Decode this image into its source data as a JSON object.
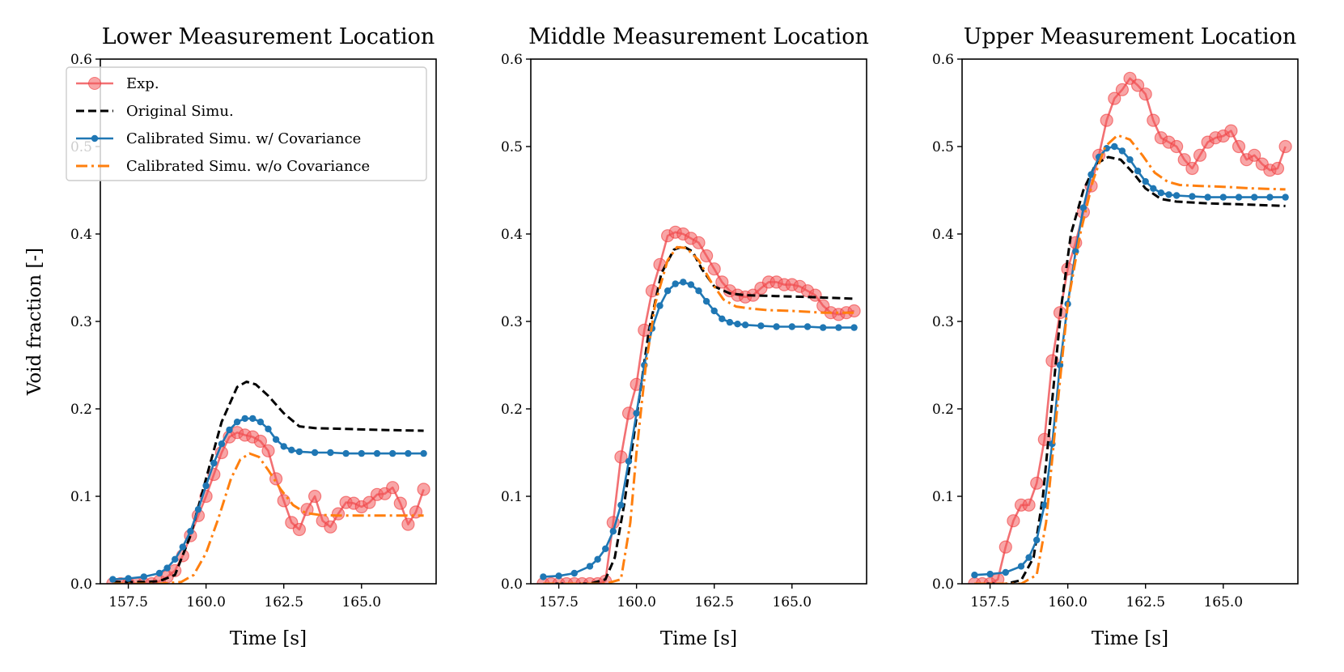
{
  "chart_data": [
    {
      "type": "line",
      "title": "Lower Measurement Location",
      "xlabel": "Time [s]",
      "ylabel": "Void fraction [-]",
      "xlim": [
        156.6,
        167.4
      ],
      "ylim": [
        0.0,
        0.6
      ],
      "xticks": [
        "157.5",
        "160.0",
        "162.5",
        "165.0"
      ],
      "yticks": [
        "0.0",
        "0.1",
        "0.2",
        "0.3",
        "0.4",
        "0.5",
        "0.6"
      ],
      "legend": "upper-left",
      "series": [
        {
          "name": "Exp.",
          "style": "exp",
          "x": [
            157.0,
            157.25,
            157.5,
            157.75,
            158.0,
            158.25,
            158.5,
            158.75,
            159.0,
            159.25,
            159.5,
            159.75,
            160.0,
            160.25,
            160.5,
            160.75,
            161.0,
            161.25,
            161.5,
            161.75,
            162.0,
            162.25,
            162.5,
            162.75,
            163.0,
            163.25,
            163.5,
            163.75,
            164.0,
            164.25,
            164.5,
            164.75,
            165.0,
            165.25,
            165.5,
            165.75,
            166.0,
            166.25,
            166.5,
            166.75,
            167.0
          ],
          "y": [
            0.0,
            0.0,
            0.0,
            0.0,
            0.0,
            0.0,
            0.003,
            0.008,
            0.015,
            0.032,
            0.055,
            0.078,
            0.1,
            0.125,
            0.15,
            0.168,
            0.173,
            0.17,
            0.168,
            0.163,
            0.152,
            0.12,
            0.095,
            0.07,
            0.062,
            0.085,
            0.1,
            0.072,
            0.065,
            0.08,
            0.093,
            0.092,
            0.088,
            0.093,
            0.102,
            0.103,
            0.11,
            0.092,
            0.068,
            0.082,
            0.108
          ]
        },
        {
          "name": "Original Simu.",
          "style": "orig",
          "x": [
            157.0,
            158.0,
            158.5,
            159.0,
            159.5,
            160.0,
            160.5,
            161.0,
            161.3,
            161.6,
            162.0,
            162.5,
            163.0,
            163.5,
            164.5,
            165.5,
            167.0
          ],
          "y": [
            0.002,
            0.002,
            0.003,
            0.01,
            0.055,
            0.12,
            0.185,
            0.225,
            0.231,
            0.228,
            0.215,
            0.195,
            0.18,
            0.178,
            0.177,
            0.176,
            0.175
          ]
        },
        {
          "name": "Calibrated Simu. w/ Covariance",
          "style": "cal",
          "x": [
            157.0,
            157.5,
            158.0,
            158.5,
            158.75,
            159.0,
            159.25,
            159.5,
            159.75,
            160.0,
            160.25,
            160.5,
            160.75,
            161.0,
            161.25,
            161.5,
            161.75,
            162.0,
            162.25,
            162.5,
            162.75,
            163.0,
            163.5,
            164.0,
            164.5,
            165.0,
            165.5,
            166.0,
            166.5,
            167.0
          ],
          "y": [
            0.005,
            0.006,
            0.008,
            0.012,
            0.018,
            0.028,
            0.042,
            0.06,
            0.085,
            0.112,
            0.138,
            0.16,
            0.176,
            0.185,
            0.189,
            0.189,
            0.185,
            0.177,
            0.165,
            0.157,
            0.153,
            0.151,
            0.15,
            0.15,
            0.149,
            0.149,
            0.149,
            0.149,
            0.149,
            0.149
          ]
        },
        {
          "name": "Calibrated Simu. w/o Covariance",
          "style": "calno",
          "x": [
            157.0,
            158.5,
            159.2,
            159.6,
            160.0,
            160.4,
            160.8,
            161.1,
            161.4,
            161.7,
            162.0,
            162.4,
            162.8,
            163.2,
            163.6,
            164.2,
            165.0,
            166.0,
            167.0
          ],
          "y": [
            0.0,
            0.0,
            0.002,
            0.01,
            0.035,
            0.075,
            0.12,
            0.142,
            0.149,
            0.145,
            0.13,
            0.108,
            0.09,
            0.081,
            0.079,
            0.078,
            0.078,
            0.078,
            0.078
          ]
        }
      ]
    },
    {
      "type": "line",
      "title": "Middle Measurement Location",
      "xlabel": "Time [s]",
      "ylabel": "",
      "xlim": [
        156.6,
        167.4
      ],
      "ylim": [
        0.0,
        0.6
      ],
      "xticks": [
        "157.5",
        "160.0",
        "162.5",
        "165.0"
      ],
      "yticks": [
        "0.0",
        "0.1",
        "0.2",
        "0.3",
        "0.4",
        "0.5",
        "0.6"
      ],
      "series": [
        {
          "name": "Exp.",
          "style": "exp",
          "x": [
            157.0,
            157.25,
            157.5,
            157.75,
            158.0,
            158.25,
            158.5,
            158.75,
            159.0,
            159.25,
            159.5,
            159.75,
            160.0,
            160.25,
            160.5,
            160.75,
            161.0,
            161.25,
            161.5,
            161.75,
            162.0,
            162.25,
            162.5,
            162.75,
            163.0,
            163.25,
            163.5,
            163.75,
            164.0,
            164.25,
            164.5,
            164.75,
            165.0,
            165.25,
            165.5,
            165.75,
            166.0,
            166.25,
            166.5,
            166.75,
            167.0
          ],
          "y": [
            0.0,
            0.0,
            0.0,
            0.0,
            0.0,
            0.0,
            0.0,
            0.0,
            0.003,
            0.07,
            0.145,
            0.195,
            0.228,
            0.29,
            0.335,
            0.365,
            0.398,
            0.402,
            0.4,
            0.395,
            0.39,
            0.375,
            0.36,
            0.345,
            0.335,
            0.33,
            0.328,
            0.33,
            0.338,
            0.345,
            0.345,
            0.342,
            0.342,
            0.34,
            0.335,
            0.33,
            0.318,
            0.31,
            0.308,
            0.31,
            0.312
          ]
        },
        {
          "name": "Original Simu.",
          "style": "orig",
          "x": [
            157.0,
            158.5,
            159.0,
            159.3,
            159.6,
            160.0,
            160.4,
            160.8,
            161.2,
            161.5,
            161.8,
            162.1,
            162.5,
            163.0,
            163.5,
            164.5,
            165.5,
            167.0
          ],
          "y": [
            0.0,
            0.0,
            0.005,
            0.03,
            0.09,
            0.19,
            0.29,
            0.355,
            0.382,
            0.386,
            0.38,
            0.36,
            0.34,
            0.332,
            0.33,
            0.329,
            0.328,
            0.326
          ]
        },
        {
          "name": "Calibrated Simu. w/ Covariance",
          "style": "cal",
          "x": [
            157.0,
            157.5,
            158.0,
            158.5,
            158.75,
            159.0,
            159.25,
            159.5,
            159.75,
            160.0,
            160.25,
            160.5,
            160.75,
            161.0,
            161.25,
            161.5,
            161.75,
            162.0,
            162.25,
            162.5,
            162.75,
            163.0,
            163.25,
            163.5,
            164.0,
            164.5,
            165.0,
            165.5,
            166.0,
            166.5,
            167.0
          ],
          "y": [
            0.008,
            0.009,
            0.012,
            0.02,
            0.028,
            0.04,
            0.06,
            0.09,
            0.14,
            0.195,
            0.25,
            0.292,
            0.318,
            0.335,
            0.343,
            0.345,
            0.342,
            0.335,
            0.323,
            0.312,
            0.303,
            0.299,
            0.297,
            0.296,
            0.295,
            0.294,
            0.294,
            0.294,
            0.293,
            0.293,
            0.293
          ]
        },
        {
          "name": "Calibrated Simu. w/o Covariance",
          "style": "calno",
          "x": [
            157.0,
            159.0,
            159.5,
            159.8,
            160.0,
            160.3,
            160.6,
            161.0,
            161.3,
            161.6,
            162.0,
            162.4,
            162.8,
            163.2,
            163.6,
            164.2,
            165.0,
            166.0,
            167.0
          ],
          "y": [
            0.0,
            0.0,
            0.005,
            0.07,
            0.15,
            0.25,
            0.32,
            0.37,
            0.385,
            0.384,
            0.37,
            0.345,
            0.325,
            0.317,
            0.315,
            0.313,
            0.312,
            0.31,
            0.31
          ]
        }
      ]
    },
    {
      "type": "line",
      "title": "Upper Measurement Location",
      "xlabel": "Time [s]",
      "ylabel": "",
      "xlim": [
        156.6,
        167.4
      ],
      "ylim": [
        0.0,
        0.6
      ],
      "xticks": [
        "157.5",
        "160.0",
        "162.5",
        "165.0"
      ],
      "yticks": [
        "0.0",
        "0.1",
        "0.2",
        "0.3",
        "0.4",
        "0.5",
        "0.6"
      ],
      "series": [
        {
          "name": "Exp.",
          "style": "exp",
          "x": [
            157.0,
            157.25,
            157.5,
            157.75,
            158.0,
            158.25,
            158.5,
            158.75,
            159.0,
            159.25,
            159.5,
            159.75,
            160.0,
            160.25,
            160.5,
            160.75,
            161.0,
            161.25,
            161.5,
            161.75,
            162.0,
            162.25,
            162.5,
            162.75,
            163.0,
            163.25,
            163.5,
            163.75,
            164.0,
            164.25,
            164.5,
            164.75,
            165.0,
            165.25,
            165.5,
            165.75,
            166.0,
            166.25,
            166.5,
            166.75,
            167.0
          ],
          "y": [
            0.0,
            0.0,
            0.0,
            0.005,
            0.042,
            0.072,
            0.09,
            0.09,
            0.115,
            0.165,
            0.255,
            0.31,
            0.36,
            0.39,
            0.425,
            0.455,
            0.49,
            0.53,
            0.555,
            0.565,
            0.578,
            0.57,
            0.56,
            0.53,
            0.51,
            0.505,
            0.5,
            0.485,
            0.475,
            0.49,
            0.505,
            0.51,
            0.512,
            0.518,
            0.5,
            0.485,
            0.49,
            0.48,
            0.473,
            0.475,
            0.5
          ]
        },
        {
          "name": "Original Simu.",
          "style": "orig",
          "x": [
            157.0,
            158.0,
            158.5,
            158.9,
            159.2,
            159.5,
            159.8,
            160.1,
            160.5,
            160.9,
            161.3,
            161.7,
            162.1,
            162.5,
            163.0,
            163.5,
            164.5,
            165.5,
            167.0
          ],
          "y": [
            0.0,
            0.0,
            0.004,
            0.03,
            0.1,
            0.21,
            0.32,
            0.4,
            0.45,
            0.48,
            0.488,
            0.485,
            0.47,
            0.452,
            0.44,
            0.437,
            0.435,
            0.434,
            0.432
          ]
        },
        {
          "name": "Calibrated Simu. w/ Covariance",
          "style": "cal",
          "x": [
            157.0,
            157.5,
            158.0,
            158.5,
            158.75,
            159.0,
            159.25,
            159.5,
            159.75,
            160.0,
            160.25,
            160.5,
            160.75,
            161.0,
            161.25,
            161.5,
            161.75,
            162.0,
            162.25,
            162.5,
            162.75,
            163.0,
            163.25,
            163.5,
            164.0,
            164.5,
            165.0,
            165.5,
            166.0,
            166.5,
            167.0
          ],
          "y": [
            0.01,
            0.011,
            0.013,
            0.02,
            0.03,
            0.05,
            0.09,
            0.16,
            0.25,
            0.32,
            0.38,
            0.43,
            0.468,
            0.488,
            0.498,
            0.5,
            0.495,
            0.485,
            0.472,
            0.46,
            0.452,
            0.447,
            0.445,
            0.444,
            0.443,
            0.442,
            0.442,
            0.442,
            0.442,
            0.442,
            0.442
          ]
        },
        {
          "name": "Calibrated Simu. w/o Covariance",
          "style": "calno",
          "x": [
            157.0,
            158.5,
            159.0,
            159.3,
            159.6,
            160.0,
            160.4,
            160.8,
            161.2,
            161.6,
            162.0,
            162.4,
            162.8,
            163.2,
            163.6,
            164.2,
            165.0,
            166.0,
            167.0
          ],
          "y": [
            0.0,
            0.0,
            0.01,
            0.07,
            0.18,
            0.32,
            0.4,
            0.46,
            0.5,
            0.513,
            0.508,
            0.49,
            0.47,
            0.46,
            0.456,
            0.455,
            0.454,
            0.452,
            0.451
          ]
        }
      ]
    }
  ]
}
